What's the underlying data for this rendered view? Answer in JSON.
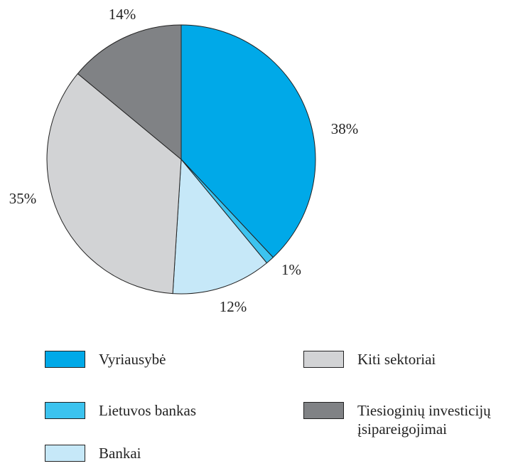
{
  "chart_data": {
    "type": "pie",
    "categories": [
      "Vyriausybė",
      "Lietuvos bankas",
      "Bankai",
      "Kiti sektoriai",
      "Tiesioginių investicijų įsipareigojimai"
    ],
    "values": [
      38,
      1,
      12,
      35,
      14
    ],
    "value_labels": [
      "38%",
      "1%",
      "12%",
      "35%",
      "14%"
    ],
    "colors": [
      "#00a9e8",
      "#3cc3ef",
      "#c6e8f8",
      "#d2d3d5",
      "#808285"
    ]
  }
}
